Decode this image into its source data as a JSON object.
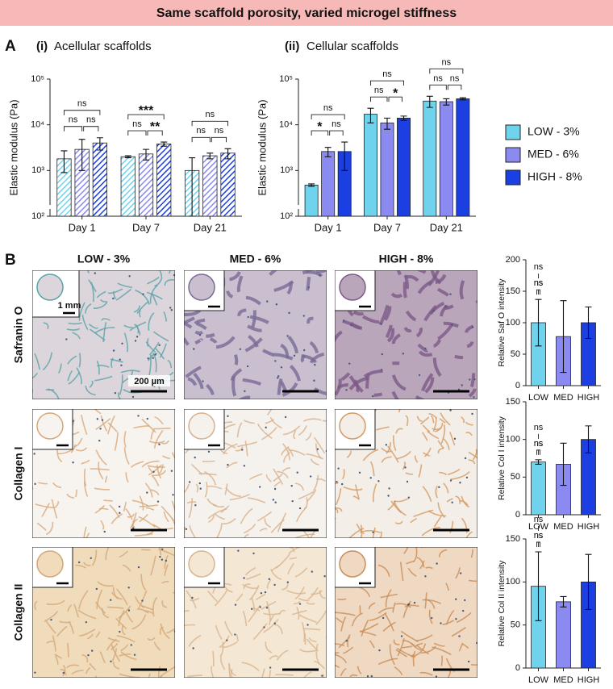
{
  "header": {
    "title": "Same scaffold porosity, varied microgel stiffness"
  },
  "panel_a": {
    "label": "A"
  },
  "panel_b": {
    "label": "B",
    "columns": [
      "LOW - 3%",
      "MED - 6%",
      "HIGH - 8%"
    ],
    "rows": [
      "Safranin O",
      "Collagen I",
      "Collagen II"
    ],
    "inset_scale": "1 mm",
    "scale": "200 µm"
  },
  "chart_data": [
    {
      "type": "bar",
      "panel": "(i)",
      "title": "Acellular scaffolds",
      "y_label": "Elastic modulus (Pa)",
      "log_scale": true,
      "hatched": true,
      "categories": [
        "Day 1",
        "Day 7",
        "Day 21"
      ],
      "series": [
        {
          "name": "LOW - 3%",
          "color": "#6fd3ee",
          "values": [
            1800,
            2000,
            1000
          ],
          "errors": [
            900,
            100,
            900
          ]
        },
        {
          "name": "MED - 6%",
          "color": "#8a8af0",
          "values": [
            2900,
            2300,
            2100
          ],
          "errors": [
            1900,
            600,
            300
          ]
        },
        {
          "name": "HIGH - 8%",
          "color": "#1b3fe0",
          "values": [
            4000,
            3800,
            2400
          ],
          "errors": [
            1200,
            400,
            600
          ]
        }
      ],
      "ylim": [
        100,
        100000
      ],
      "yticks": [
        {
          "value": 100,
          "label": "10²"
        },
        {
          "value": 1000,
          "label": "10³"
        },
        {
          "value": 10000,
          "label": "10⁴"
        },
        {
          "value": 100000,
          "label": "10⁵"
        }
      ],
      "significance": [
        {
          "group": 0,
          "pair": [
            0,
            1
          ],
          "label": "ns"
        },
        {
          "group": 0,
          "pair": [
            1,
            2
          ],
          "label": "ns"
        },
        {
          "group": 0,
          "pair": [
            0,
            2
          ],
          "label": "ns"
        },
        {
          "group": 1,
          "pair": [
            0,
            1
          ],
          "label": "ns"
        },
        {
          "group": 1,
          "pair": [
            1,
            2
          ],
          "label": "**"
        },
        {
          "group": 1,
          "pair": [
            0,
            2
          ],
          "label": "***"
        },
        {
          "group": 2,
          "pair": [
            0,
            1
          ],
          "label": "ns"
        },
        {
          "group": 2,
          "pair": [
            1,
            2
          ],
          "label": "ns"
        },
        {
          "group": 2,
          "pair": [
            0,
            2
          ],
          "label": "ns"
        }
      ]
    },
    {
      "type": "bar",
      "panel": "(ii)",
      "title": "Cellular scaffolds",
      "y_label": "Elastic modulus (Pa)",
      "log_scale": true,
      "hatched": false,
      "categories": [
        "Day 1",
        "Day 7",
        "Day 21"
      ],
      "series": [
        {
          "name": "LOW - 3%",
          "color": "#6fd3ee",
          "values": [
            480,
            17000,
            33000
          ],
          "errors": [
            30,
            6000,
            9000
          ]
        },
        {
          "name": "MED - 6%",
          "color": "#8a8af0",
          "values": [
            2600,
            11000,
            32000
          ],
          "errors": [
            600,
            3000,
            5000
          ]
        },
        {
          "name": "HIGH - 8%",
          "color": "#1b3fe0",
          "values": [
            2600,
            14000,
            37000
          ],
          "errors": [
            1600,
            1500,
            2000
          ]
        }
      ],
      "ylim": [
        100,
        100000
      ],
      "yticks": [
        {
          "value": 100,
          "label": "10²"
        },
        {
          "value": 1000,
          "label": "10³"
        },
        {
          "value": 10000,
          "label": "10⁴"
        },
        {
          "value": 100000,
          "label": "10⁵"
        }
      ],
      "significance": [
        {
          "group": 0,
          "pair": [
            0,
            1
          ],
          "label": "*"
        },
        {
          "group": 0,
          "pair": [
            1,
            2
          ],
          "label": "ns"
        },
        {
          "group": 0,
          "pair": [
            0,
            2
          ],
          "label": "ns"
        },
        {
          "group": 1,
          "pair": [
            0,
            1
          ],
          "label": "ns"
        },
        {
          "group": 1,
          "pair": [
            1,
            2
          ],
          "label": "*"
        },
        {
          "group": 1,
          "pair": [
            0,
            2
          ],
          "label": "ns"
        },
        {
          "group": 2,
          "pair": [
            0,
            1
          ],
          "label": "ns"
        },
        {
          "group": 2,
          "pair": [
            1,
            2
          ],
          "label": "ns"
        },
        {
          "group": 2,
          "pair": [
            0,
            2
          ],
          "label": "ns"
        }
      ]
    },
    {
      "type": "bar",
      "y_label": "Relative Saf O intensity",
      "categories": [
        "LOW",
        "MED",
        "HIGH"
      ],
      "values": [
        100,
        78,
        100
      ],
      "errors": [
        37,
        57,
        25
      ],
      "colors": [
        "#6fd3ee",
        "#8a8af0",
        "#1b3fe0"
      ],
      "ylim": [
        0,
        200
      ],
      "yticks": [
        0,
        50,
        100,
        150,
        200
      ],
      "significance": [
        {
          "group": 0,
          "pair": [
            0,
            1
          ],
          "label": "ns"
        },
        {
          "group": 0,
          "pair": [
            1,
            2
          ],
          "label": "ns"
        },
        {
          "group": 0,
          "pair": [
            0,
            2
          ],
          "label": "ns"
        }
      ]
    },
    {
      "type": "bar",
      "y_label": "Relative Col I intensity",
      "categories": [
        "LOW",
        "MED",
        "HIGH"
      ],
      "values": [
        70,
        67,
        100
      ],
      "errors": [
        3,
        28,
        18
      ],
      "colors": [
        "#6fd3ee",
        "#8a8af0",
        "#1b3fe0"
      ],
      "ylim": [
        0,
        150
      ],
      "yticks": [
        0,
        50,
        100,
        150
      ],
      "significance": [
        {
          "group": 0,
          "pair": [
            0,
            1
          ],
          "label": "ns"
        },
        {
          "group": 0,
          "pair": [
            1,
            2
          ],
          "label": "ns"
        },
        {
          "group": 0,
          "pair": [
            0,
            2
          ],
          "label": "ns"
        }
      ]
    },
    {
      "type": "bar",
      "y_label": "Relative Col II intensity",
      "categories": [
        "LOW",
        "MED",
        "HIGH"
      ],
      "values": [
        95,
        77,
        100
      ],
      "errors": [
        40,
        6,
        32
      ],
      "colors": [
        "#6fd3ee",
        "#8a8af0",
        "#1b3fe0"
      ],
      "ylim": [
        0,
        150
      ],
      "yticks": [
        0,
        50,
        100,
        150
      ],
      "significance": [
        {
          "group": 0,
          "pair": [
            0,
            1
          ],
          "label": "ns"
        },
        {
          "group": 0,
          "pair": [
            1,
            2
          ],
          "label": "ns"
        },
        {
          "group": 0,
          "pair": [
            0,
            2
          ],
          "label": "ns"
        }
      ]
    }
  ]
}
